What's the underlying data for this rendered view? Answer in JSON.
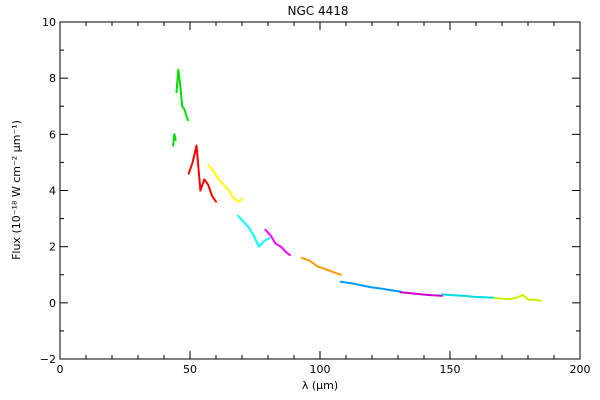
{
  "chart_data": {
    "type": "line",
    "title": "NGC 4418",
    "xlabel": "λ (μm)",
    "ylabel": "Flux (10⁻¹⁸ W cm⁻² μm⁻¹)",
    "xlim": [
      0,
      200
    ],
    "ylim": [
      -2,
      10
    ],
    "x_ticks": [
      0,
      50,
      100,
      150,
      200
    ],
    "y_ticks": [
      -2,
      0,
      2,
      4,
      6,
      8,
      10
    ],
    "grid": false,
    "legend": "none",
    "series": [
      {
        "color": "#00dd00",
        "x": [
          43.5,
          44.0,
          44.5
        ],
        "y": [
          5.6,
          6.0,
          5.8
        ]
      },
      {
        "color": "#00dd00",
        "x": [
          44.8,
          45.5,
          46.2,
          47.0,
          47.8,
          48.5,
          49.2
        ],
        "y": [
          7.5,
          8.3,
          7.8,
          7.0,
          6.9,
          6.7,
          6.5
        ]
      },
      {
        "color": "#ff0000",
        "x": [
          49.5,
          51.0,
          52.5,
          54.0,
          55.5,
          57.0,
          58.5,
          60.0
        ],
        "y": [
          4.6,
          5.0,
          5.6,
          4.0,
          4.4,
          4.2,
          3.8,
          3.6
        ]
      },
      {
        "color": "#ffff00",
        "x": [
          57.0,
          59.0,
          61.0,
          63.0,
          65.0,
          67.0,
          69.0,
          70.0
        ],
        "y": [
          4.9,
          4.7,
          4.4,
          4.2,
          4.0,
          3.7,
          3.6,
          3.7
        ]
      },
      {
        "color": "#00ffff",
        "x": [
          68.5,
          70.5,
          72.5,
          74.5,
          76.5,
          78.5,
          80.5
        ],
        "y": [
          3.1,
          2.9,
          2.7,
          2.4,
          2.0,
          2.2,
          2.3
        ]
      },
      {
        "color": "#ff00ff",
        "x": [
          79.0,
          81.0,
          83.0,
          85.0,
          87.0,
          88.5
        ],
        "y": [
          2.6,
          2.4,
          2.1,
          2.0,
          1.8,
          1.7
        ]
      },
      {
        "color": "#ff9900",
        "x": [
          93.0,
          96.0,
          99.0,
          102.0,
          105.0,
          108.0
        ],
        "y": [
          1.6,
          1.5,
          1.3,
          1.2,
          1.1,
          1.0
        ]
      },
      {
        "color": "#0099ff",
        "x": [
          108.0,
          112.0,
          116.0,
          120.0,
          124.0,
          128.0,
          131.0
        ],
        "y": [
          0.75,
          0.7,
          0.62,
          0.55,
          0.5,
          0.44,
          0.4
        ]
      },
      {
        "color": "#cc00cc",
        "x": [
          131.0,
          135.0,
          139.0,
          143.0,
          147.0
        ],
        "y": [
          0.38,
          0.34,
          0.3,
          0.27,
          0.25
        ]
      },
      {
        "color": "#00dddd",
        "x": [
          147.0,
          151.0,
          155.0,
          159.0,
          163.0,
          167.0
        ],
        "y": [
          0.3,
          0.27,
          0.25,
          0.22,
          0.2,
          0.18
        ]
      },
      {
        "color": "#ccee00",
        "x": [
          167.0,
          170.0,
          173.0,
          176.0,
          178.0,
          180.0,
          183.0,
          185.0
        ],
        "y": [
          0.17,
          0.15,
          0.13,
          0.2,
          0.28,
          0.12,
          0.1,
          0.08
        ]
      }
    ]
  }
}
